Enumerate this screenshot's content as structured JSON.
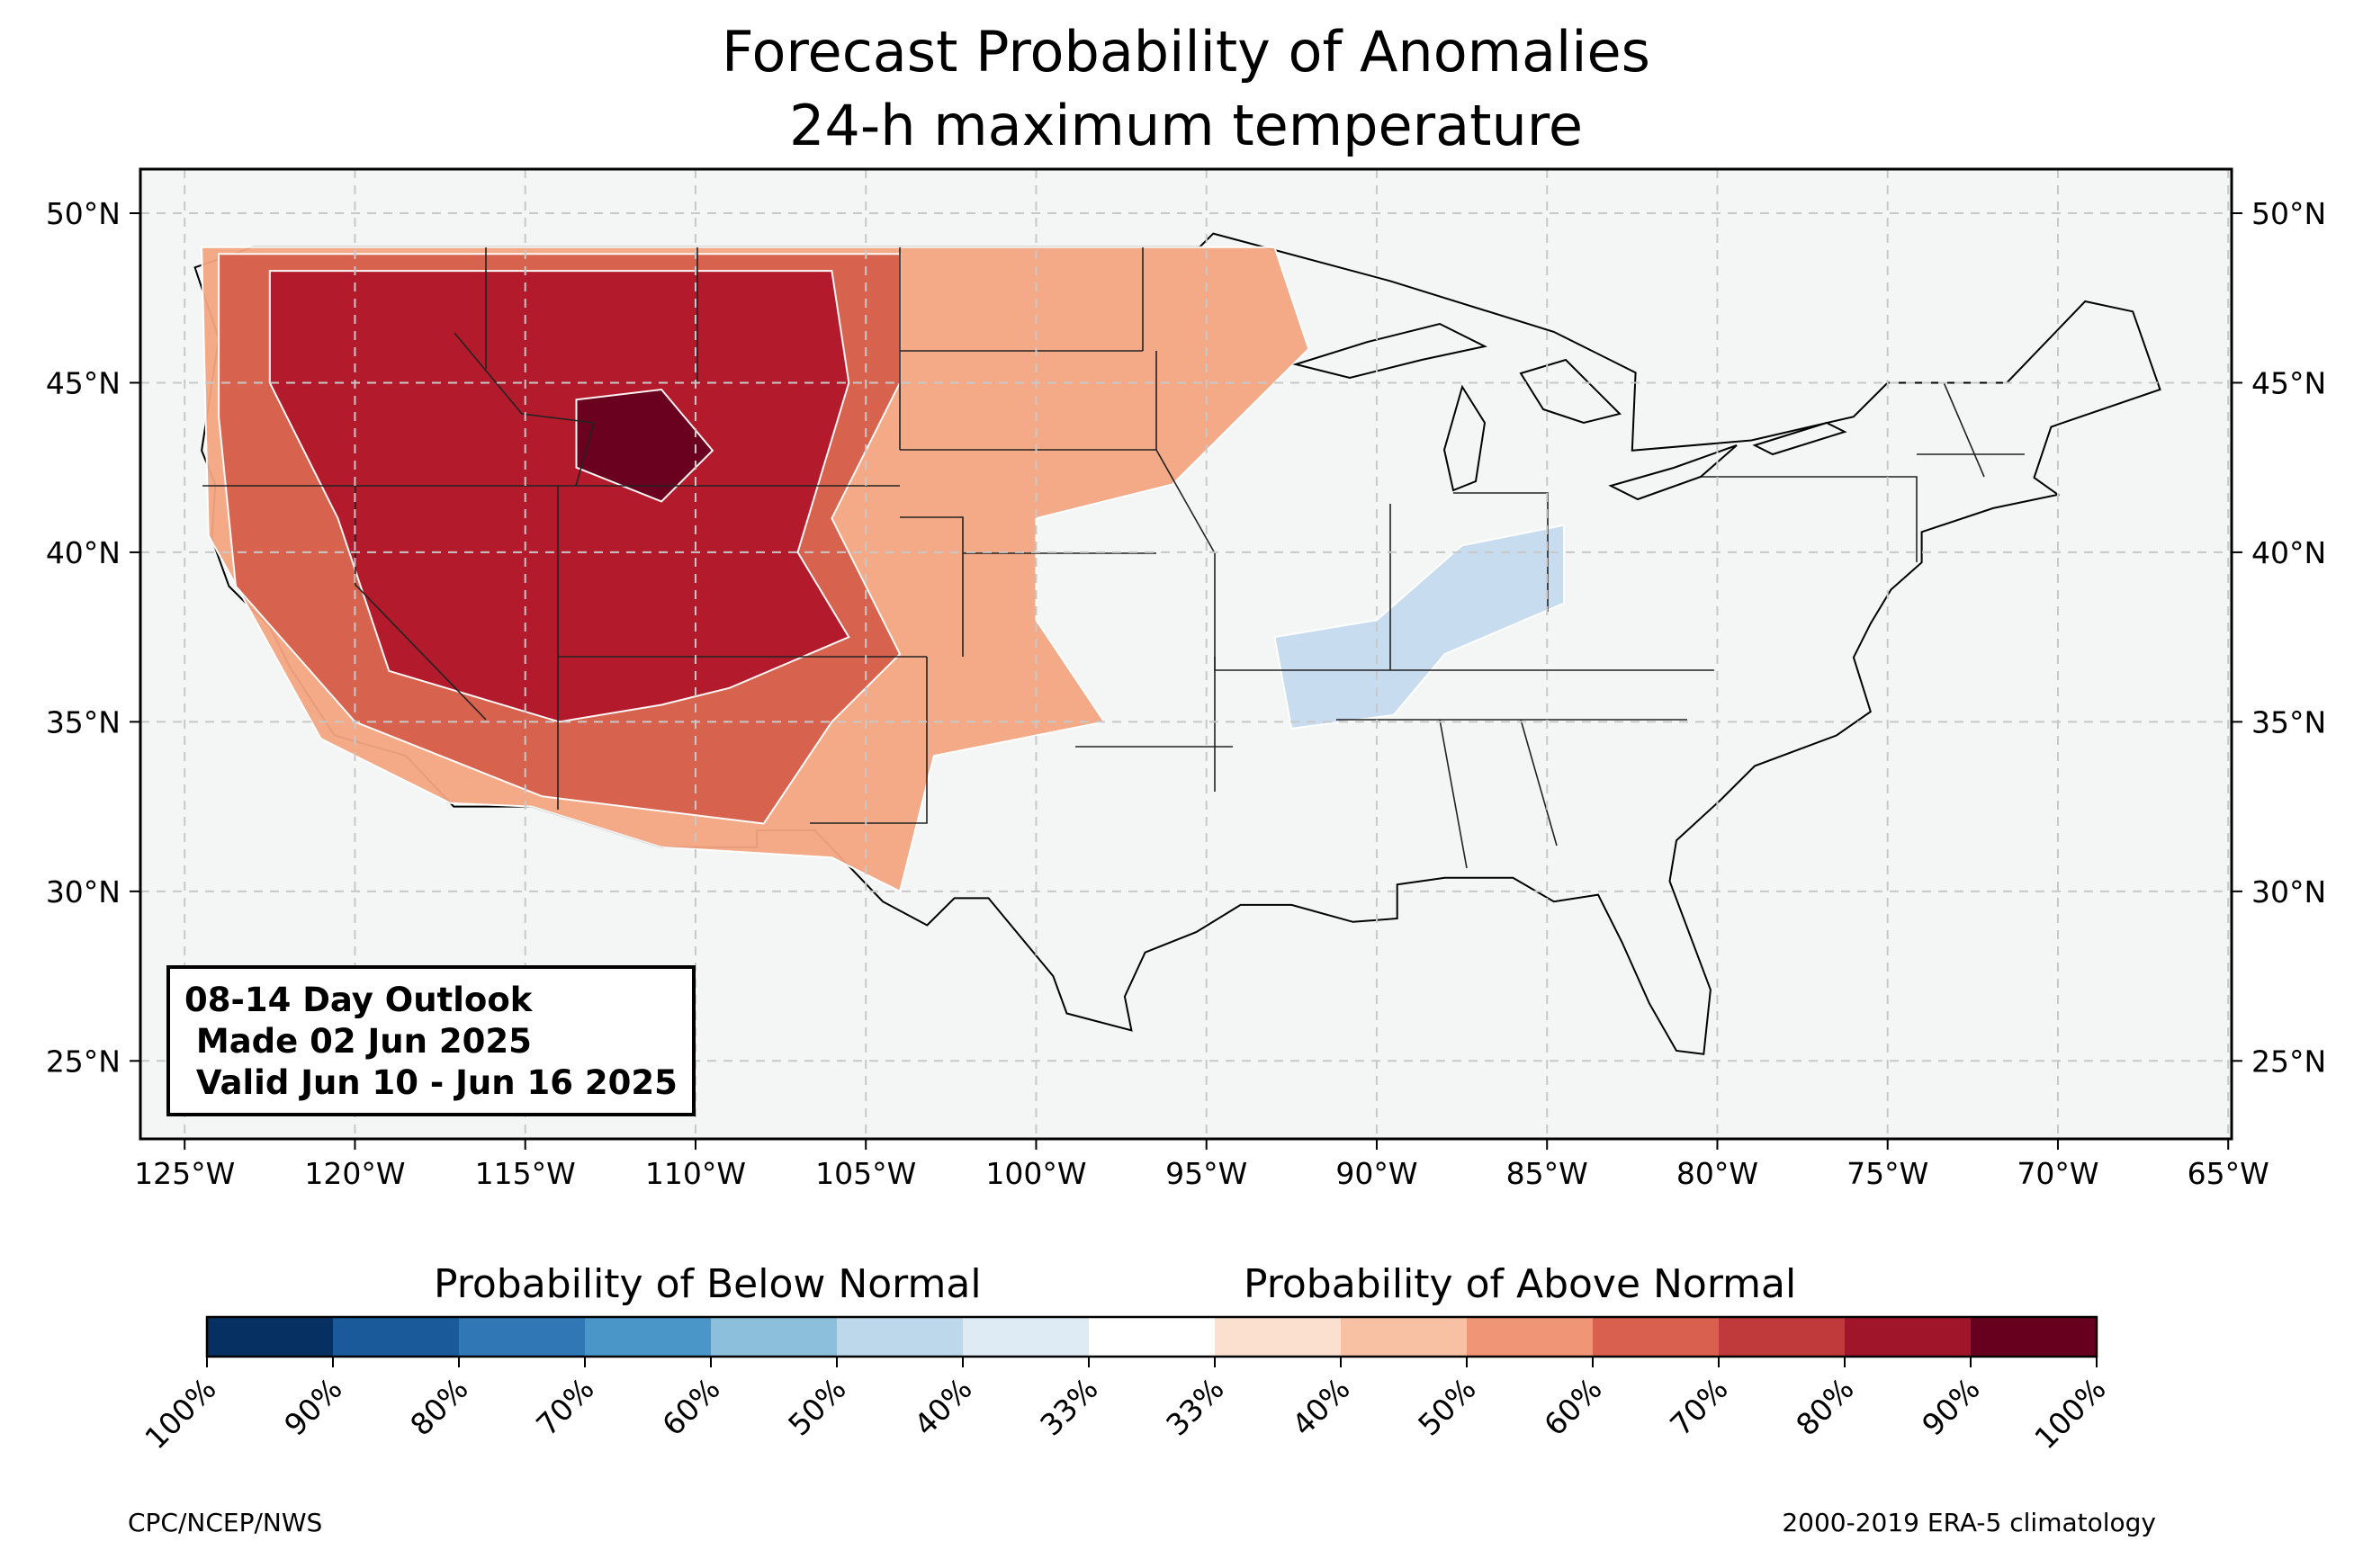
{
  "title": {
    "line1": "Forecast Probability of Anomalies",
    "line2": "24-h maximum temperature"
  },
  "outlook": {
    "line1": "08-14 Day Outlook",
    "line2": " Made 02 Jun 2025",
    "line3": " Valid Jun 10 - Jun 16 2025"
  },
  "map": {
    "lon_range": [
      -126.3,
      -64.9
    ],
    "lat_range": [
      22.7,
      51.3
    ],
    "lon_ticks": [
      "125°W",
      "120°W",
      "115°W",
      "110°W",
      "105°W",
      "100°W",
      "95°W",
      "90°W",
      "85°W",
      "80°W",
      "75°W",
      "70°W",
      "65°W"
    ],
    "lat_ticks": [
      "25°N",
      "30°N",
      "35°N",
      "40°N",
      "45°N",
      "50°N"
    ],
    "land_color": "#f4f6f6",
    "regions": [
      {
        "level": "above-50",
        "color": "#f4a582",
        "note_lonlat": [
          [
            -124.5,
            49
          ],
          [
            -93,
            49
          ],
          [
            -92,
            46
          ],
          [
            -96,
            42
          ],
          [
            -100,
            41
          ],
          [
            -100,
            38
          ],
          [
            -98,
            35
          ],
          [
            -103,
            34
          ],
          [
            -104,
            30
          ],
          [
            -106,
            31
          ],
          [
            -111,
            31.3
          ],
          [
            -114.8,
            32.5
          ],
          [
            -117.2,
            32.6
          ],
          [
            -121,
            34.5
          ],
          [
            -124.3,
            40.5
          ]
        ]
      },
      {
        "level": "above-70",
        "color": "#d6604d",
        "note_lonlat": [
          [
            -124,
            48.8
          ],
          [
            -104,
            48.8
          ],
          [
            -104,
            45
          ],
          [
            -106,
            41
          ],
          [
            -104,
            37
          ],
          [
            -106,
            35
          ],
          [
            -108,
            32
          ],
          [
            -114.5,
            32.8
          ],
          [
            -120,
            35
          ],
          [
            -123.5,
            39
          ],
          [
            -124,
            44
          ]
        ]
      },
      {
        "level": "above-80",
        "color": "#b2182b",
        "note_lonlat": [
          [
            -122.5,
            48.3
          ],
          [
            -106,
            48.3
          ],
          [
            -105.5,
            45
          ],
          [
            -107,
            40
          ],
          [
            -105.5,
            37.5
          ],
          [
            -109,
            36
          ],
          [
            -111,
            35.5
          ],
          [
            -114,
            35
          ],
          [
            -119,
            36.5
          ],
          [
            -120.5,
            41
          ],
          [
            -122.5,
            45
          ]
        ]
      },
      {
        "level": "above-90",
        "color": "#67001f",
        "note_lonlat": [
          [
            -113.5,
            44.5
          ],
          [
            -111,
            44.8
          ],
          [
            -109.5,
            43
          ],
          [
            -111,
            41.5
          ],
          [
            -113.5,
            42.5
          ]
        ]
      },
      {
        "level": "below-40",
        "color": "#c6dbef",
        "note_lonlat": [
          [
            -93,
            37.5
          ],
          [
            -90,
            38
          ],
          [
            -87.5,
            40.2
          ],
          [
            -84.5,
            40.8
          ],
          [
            -84.5,
            38.5
          ],
          [
            -88,
            37
          ],
          [
            -89.5,
            35.2
          ],
          [
            -92.5,
            34.8
          ]
        ]
      }
    ]
  },
  "colorbar": {
    "below_label": "Probability of Below Normal",
    "above_label": "Probability of Above Normal",
    "colors": [
      "#053061",
      "#2166ac",
      "#4393c3",
      "#92c5de",
      "#d1e5f0",
      "#ffffff",
      "#ffffff",
      "#fddbc7",
      "#f4a582",
      "#d6604d",
      "#b2182b",
      "#67001f"
    ],
    "levels": [
      {
        "color": "#053061"
      },
      {
        "color": "#1b5a9a"
      },
      {
        "color": "#2f77b5"
      },
      {
        "color": "#4a96c9"
      },
      {
        "color": "#8cbfdb"
      },
      {
        "color": "#bcd8ea"
      },
      {
        "color": "#deebf5"
      },
      {
        "color": "#ffffff"
      },
      {
        "color": "#fbe0d0"
      },
      {
        "color": "#f8c1a4"
      },
      {
        "color": "#f09676"
      },
      {
        "color": "#d9604f"
      },
      {
        "color": "#c03a3b"
      },
      {
        "color": "#a01529"
      },
      {
        "color": "#67001f"
      }
    ],
    "tick_labels": [
      "100%",
      "90%",
      "80%",
      "70%",
      "60%",
      "50%",
      "40%",
      "33%",
      "33%",
      "40%",
      "50%",
      "60%",
      "70%",
      "80%",
      "90%",
      "100%"
    ]
  },
  "footer": {
    "left": "CPC/NCEP/NWS",
    "right": "2000-2019 ERA-5 climatology"
  }
}
